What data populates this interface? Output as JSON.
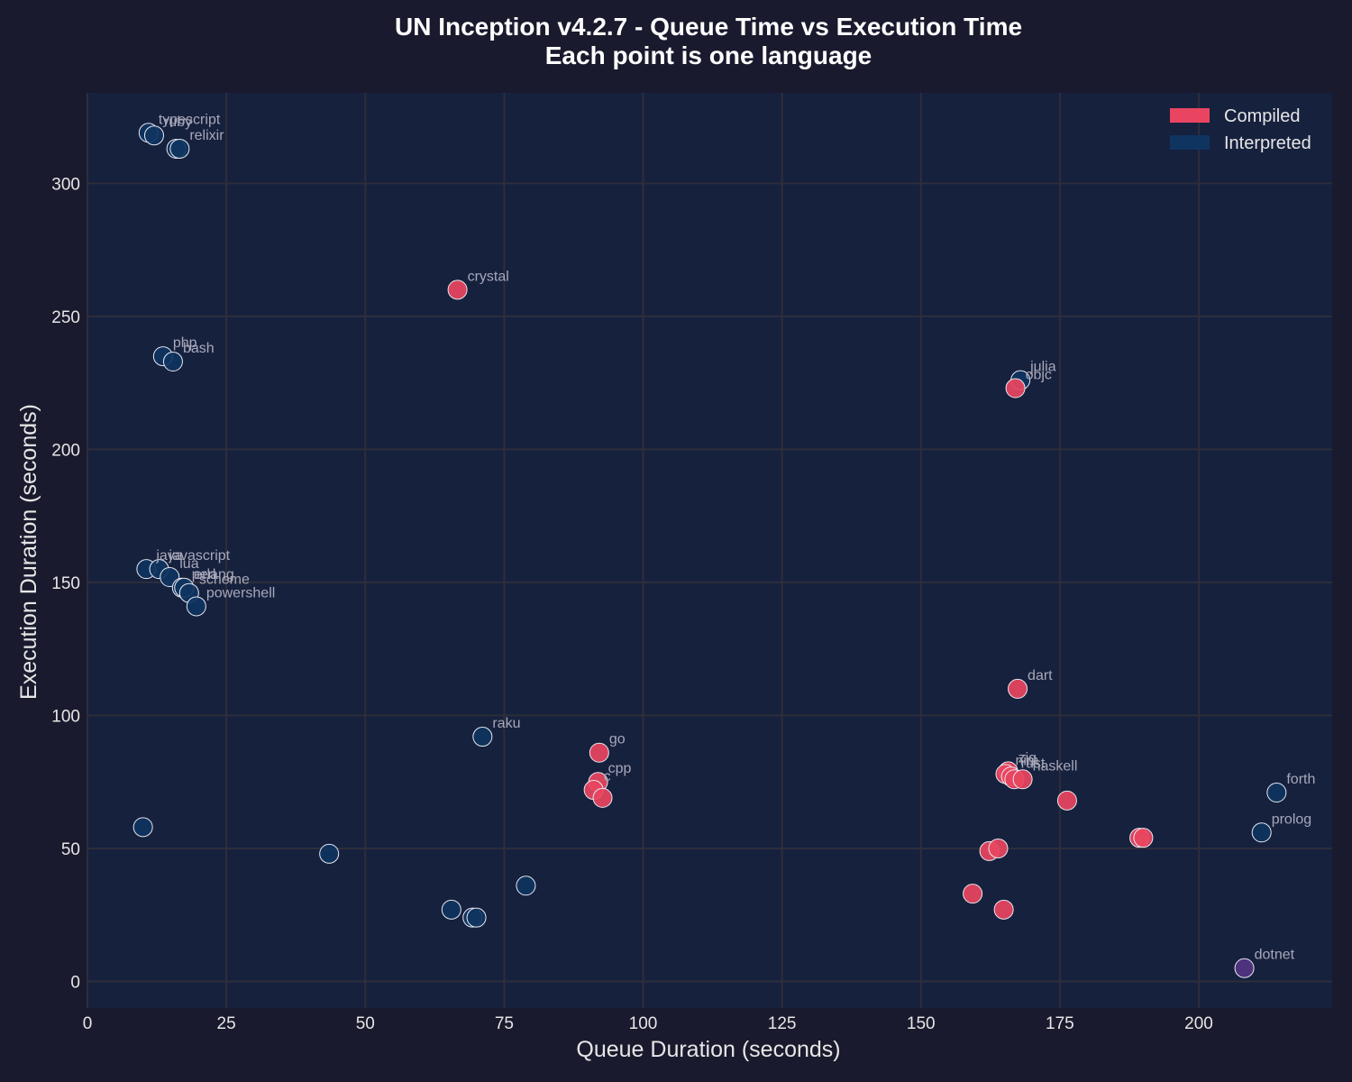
{
  "chart_data": {
    "type": "scatter",
    "title": "UN Inception v4.2.7 - Queue Time vs Execution Time",
    "subtitle": "Each point is one language",
    "xlabel": "Queue Duration (seconds)",
    "ylabel": "Execution Duration (seconds)",
    "xlim": [
      0,
      224
    ],
    "ylim": [
      -10,
      334
    ],
    "xticks": [
      0,
      25,
      50,
      75,
      100,
      125,
      150,
      175,
      200
    ],
    "yticks": [
      0,
      50,
      100,
      150,
      200,
      250,
      300
    ],
    "grid": true,
    "legend_position": "top-right",
    "colors": {
      "background": "#1a1a2e",
      "plot_background": "#16213e",
      "grid": "#2e2e3a",
      "Compiled": "#e94560",
      "Interpreted": "#0f3460",
      "Other": "#533483",
      "marker_edge": "#e8e8f0"
    },
    "legend": [
      {
        "name": "Compiled",
        "color": "#e94560"
      },
      {
        "name": "Interpreted",
        "color": "#0f3460"
      }
    ],
    "points": [
      {
        "label": "typescript",
        "x": 11,
        "y": 319,
        "category": "Interpreted"
      },
      {
        "label": "ruby",
        "x": 12,
        "y": 318,
        "category": "Interpreted"
      },
      {
        "label": "",
        "x": 16,
        "y": 313,
        "category": "Interpreted"
      },
      {
        "label": "relixir",
        "x": 16.6,
        "y": 313,
        "category": "Interpreted"
      },
      {
        "label": "crystal",
        "x": 66.6,
        "y": 260,
        "category": "Compiled"
      },
      {
        "label": "php",
        "x": 13.6,
        "y": 235,
        "category": "Interpreted"
      },
      {
        "label": "bash",
        "x": 15.4,
        "y": 233,
        "category": "Interpreted"
      },
      {
        "label": "julia",
        "x": 167.9,
        "y": 226,
        "category": "Interpreted"
      },
      {
        "label": "objc",
        "x": 167,
        "y": 223,
        "category": "Compiled"
      },
      {
        "label": "java",
        "x": 10.6,
        "y": 155,
        "category": "Interpreted"
      },
      {
        "label": "javascript",
        "x": 12.9,
        "y": 155,
        "category": "Interpreted"
      },
      {
        "label": "lua",
        "x": 14.8,
        "y": 152,
        "category": "Interpreted"
      },
      {
        "label": "perl",
        "x": 17,
        "y": 148,
        "category": "Interpreted"
      },
      {
        "label": "erlang",
        "x": 17.4,
        "y": 148,
        "category": "Interpreted"
      },
      {
        "label": "scheme",
        "x": 18.3,
        "y": 146,
        "category": "Interpreted"
      },
      {
        "label": "powershell",
        "x": 19.6,
        "y": 141,
        "category": "Interpreted"
      },
      {
        "label": "dart",
        "x": 167.4,
        "y": 110,
        "category": "Compiled"
      },
      {
        "label": "raku",
        "x": 71.1,
        "y": 92,
        "category": "Interpreted"
      },
      {
        "label": "go",
        "x": 92.1,
        "y": 86,
        "category": "Compiled"
      },
      {
        "label": "cpp",
        "x": 91.9,
        "y": 75,
        "category": "Compiled"
      },
      {
        "label": "c",
        "x": 91.1,
        "y": 72,
        "category": "Compiled"
      },
      {
        "label": "",
        "x": 92.7,
        "y": 69,
        "category": "Compiled"
      },
      {
        "label": "zig",
        "x": 165.7,
        "y": 79,
        "category": "Compiled"
      },
      {
        "label": "nim",
        "x": 165.2,
        "y": 78,
        "category": "Compiled"
      },
      {
        "label": "rust",
        "x": 166.2,
        "y": 77,
        "category": "Compiled"
      },
      {
        "label": "",
        "x": 166.8,
        "y": 76,
        "category": "Compiled"
      },
      {
        "label": "haskell",
        "x": 168.3,
        "y": 76,
        "category": "Compiled"
      },
      {
        "label": "",
        "x": 176.3,
        "y": 68,
        "category": "Compiled"
      },
      {
        "label": "forth",
        "x": 214,
        "y": 71,
        "category": "Interpreted"
      },
      {
        "label": "",
        "x": 10,
        "y": 58,
        "category": "Interpreted"
      },
      {
        "label": "prolog",
        "x": 211.3,
        "y": 56,
        "category": "Interpreted"
      },
      {
        "label": "",
        "x": 189.3,
        "y": 54,
        "category": "Compiled"
      },
      {
        "label": "",
        "x": 190,
        "y": 54,
        "category": "Compiled"
      },
      {
        "label": "",
        "x": 162.3,
        "y": 49,
        "category": "Compiled"
      },
      {
        "label": "",
        "x": 163.9,
        "y": 50,
        "category": "Compiled"
      },
      {
        "label": "",
        "x": 43.5,
        "y": 48,
        "category": "Interpreted"
      },
      {
        "label": "",
        "x": 78.9,
        "y": 36,
        "category": "Interpreted"
      },
      {
        "label": "",
        "x": 159.3,
        "y": 33,
        "category": "Compiled"
      },
      {
        "label": "",
        "x": 65.5,
        "y": 27,
        "category": "Interpreted"
      },
      {
        "label": "",
        "x": 164.9,
        "y": 27,
        "category": "Compiled"
      },
      {
        "label": "",
        "x": 69.3,
        "y": 24,
        "category": "Interpreted"
      },
      {
        "label": "",
        "x": 70,
        "y": 24,
        "category": "Interpreted"
      },
      {
        "label": "dotnet",
        "x": 208.2,
        "y": 5,
        "category": "Other"
      }
    ]
  }
}
